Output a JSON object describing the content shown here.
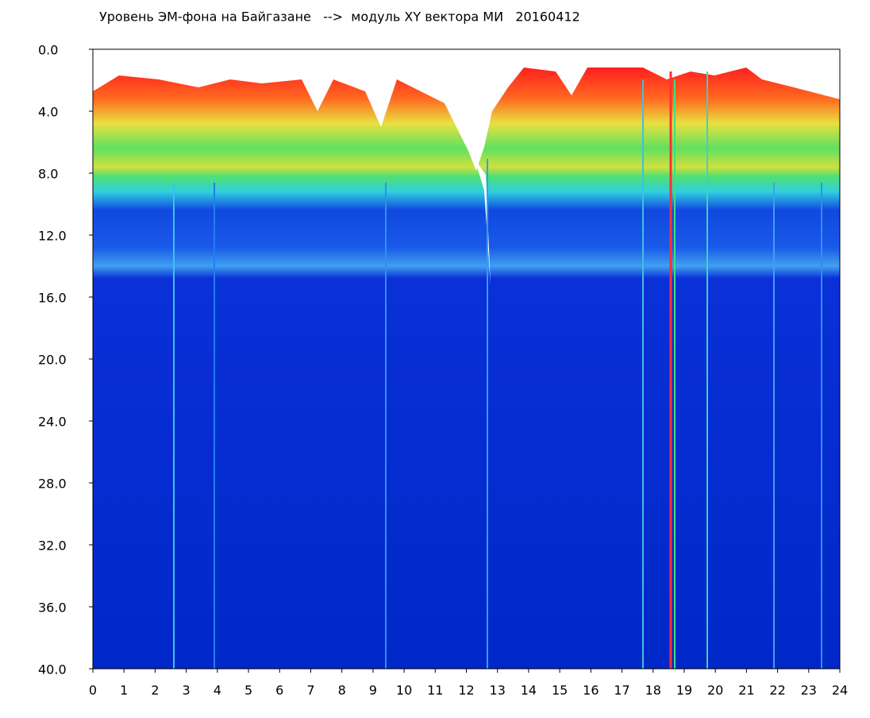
{
  "chart_data": {
    "type": "heatmap",
    "title": "Уровень ЭМ-фона на Байгазане   -->  модуль XY вектора МИ   20160412",
    "xlim": [
      0,
      24
    ],
    "xticks": [
      0,
      1,
      2,
      3,
      4,
      5,
      6,
      7,
      8,
      9,
      10,
      11,
      12,
      13,
      14,
      15,
      16,
      17,
      18,
      19,
      20,
      21,
      22,
      23,
      24
    ],
    "ylim": [
      0,
      40
    ],
    "y_reversed": true,
    "yticks": [
      {
        "value": 0,
        "label": "0.0"
      },
      {
        "value": 4,
        "label": "4.0"
      },
      {
        "value": 8,
        "label": "8.0"
      },
      {
        "value": 12,
        "label": "12.0"
      },
      {
        "value": 16,
        "label": "16.0"
      },
      {
        "value": 20,
        "label": "20.0"
      },
      {
        "value": 24,
        "label": "24.0"
      },
      {
        "value": 28,
        "label": "28.0"
      },
      {
        "value": 32,
        "label": "32.0"
      },
      {
        "value": 36,
        "label": "36.0"
      },
      {
        "value": 40,
        "label": "40.0"
      }
    ]
  }
}
